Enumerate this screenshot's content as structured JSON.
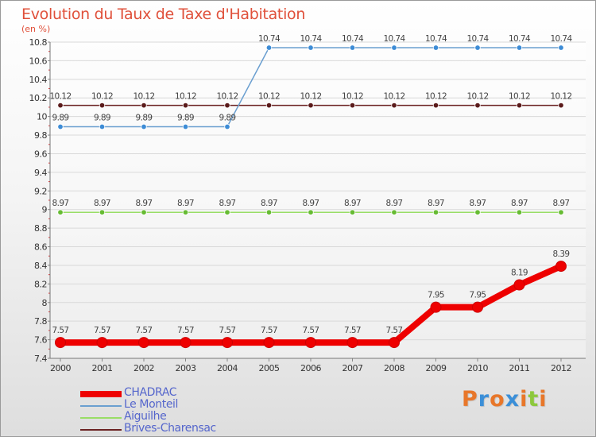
{
  "chart_data": {
    "type": "line",
    "title": "Evolution du Taux de Taxe d'Habitation",
    "unit_label": "(en %)",
    "x": [
      "2000",
      "2001",
      "2002",
      "2003",
      "2004",
      "2005",
      "2006",
      "2007",
      "2008",
      "2009",
      "2010",
      "2011",
      "2012"
    ],
    "ylim": [
      7.4,
      10.8
    ],
    "y_ticks": [
      "7.4",
      "7.6",
      "7.8",
      "8",
      "8.2",
      "8.4",
      "8.6",
      "8.8",
      "9",
      "9.2",
      "9.4",
      "9.6",
      "9.8",
      "10",
      "10.2",
      "10.4",
      "10.6",
      "10.8"
    ],
    "series": [
      {
        "name": "CHADRAC",
        "color": "#ee0000",
        "bold": true,
        "values": [
          7.57,
          7.57,
          7.57,
          7.57,
          7.57,
          7.57,
          7.57,
          7.57,
          7.57,
          7.95,
          7.95,
          8.19,
          8.39
        ],
        "labels": [
          "7.57",
          "7.57",
          "7.57",
          "7.57",
          "7.57",
          "7.57",
          "7.57",
          "7.57",
          "7.57",
          "7.95",
          "7.95",
          "8.19",
          "8.39"
        ]
      },
      {
        "name": "Le Monteil",
        "color": "#6a9fd0",
        "marker": "#3d8cd6",
        "bold": false,
        "values": [
          9.89,
          9.89,
          9.89,
          9.89,
          9.89,
          10.74,
          10.74,
          10.74,
          10.74,
          10.74,
          10.74,
          10.74,
          10.74
        ],
        "labels": [
          "9.89",
          "9.89",
          "9.89",
          "9.89",
          "9.89",
          "10.74",
          "10.74",
          "10.74",
          "10.74",
          "10.74",
          "10.74",
          "10.74",
          "10.74"
        ]
      },
      {
        "name": "Aiguilhe",
        "color": "#99dd66",
        "marker": "#66bb33",
        "bold": false,
        "values": [
          8.97,
          8.97,
          8.97,
          8.97,
          8.97,
          8.97,
          8.97,
          8.97,
          8.97,
          8.97,
          8.97,
          8.97,
          8.97
        ],
        "labels": [
          "8.97",
          "8.97",
          "8.97",
          "8.97",
          "8.97",
          "8.97",
          "8.97",
          "8.97",
          "8.97",
          "8.97",
          "8.97",
          "8.97",
          "8.97"
        ]
      },
      {
        "name": "Brives-Charensac",
        "color": "#6b2222",
        "marker": "#5a1a1a",
        "bold": false,
        "values": [
          10.12,
          10.12,
          10.12,
          10.12,
          10.12,
          10.12,
          10.12,
          10.12,
          10.12,
          10.12,
          10.12,
          10.12,
          10.12
        ],
        "labels": [
          "10.12",
          "10.12",
          "10.12",
          "10.12",
          "10.12",
          "10.12",
          "10.12",
          "10.12",
          "10.12",
          "10.12",
          "10.12",
          "10.12",
          "10.12"
        ]
      }
    ],
    "grid": true,
    "legend_position": "bottom-left"
  },
  "branding": {
    "logo_letters": [
      "P",
      "r",
      "o",
      "x",
      "i",
      "t",
      "i"
    ],
    "logo_colors": [
      "#e8772a",
      "#3b8fd8",
      "#e8772a",
      "#3b8fd8",
      "#e8772a",
      "#8cc83c",
      "#e8772a"
    ]
  }
}
